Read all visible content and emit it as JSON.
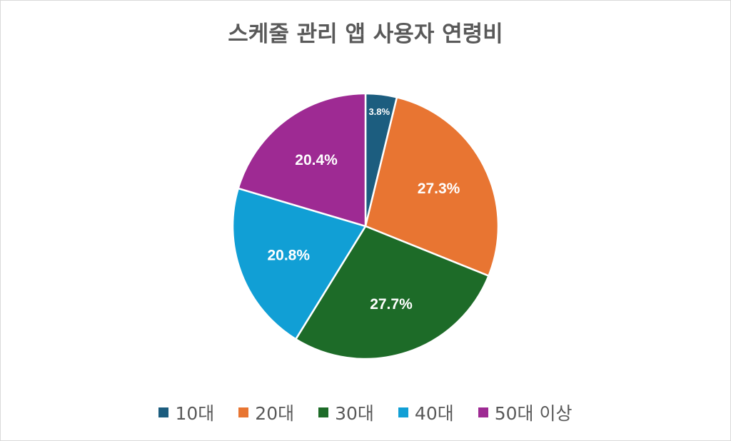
{
  "chart_data": {
    "type": "pie",
    "title": "스케줄 관리 앱 사용자 연령비",
    "categories": [
      "10대",
      "20대",
      "30대",
      "40대",
      "50대 이상"
    ],
    "values": [
      3.8,
      27.3,
      27.7,
      20.8,
      20.4
    ],
    "labels": [
      "3.8%",
      "27.3%",
      "27.7%",
      "20.8%",
      "20.4%"
    ],
    "colors": [
      "#1c5d7f",
      "#e87532",
      "#1d6b28",
      "#119fd5",
      "#9e2a93"
    ],
    "start_angle": "12 o'clock",
    "direction": "clockwise",
    "legend_position": "bottom"
  }
}
